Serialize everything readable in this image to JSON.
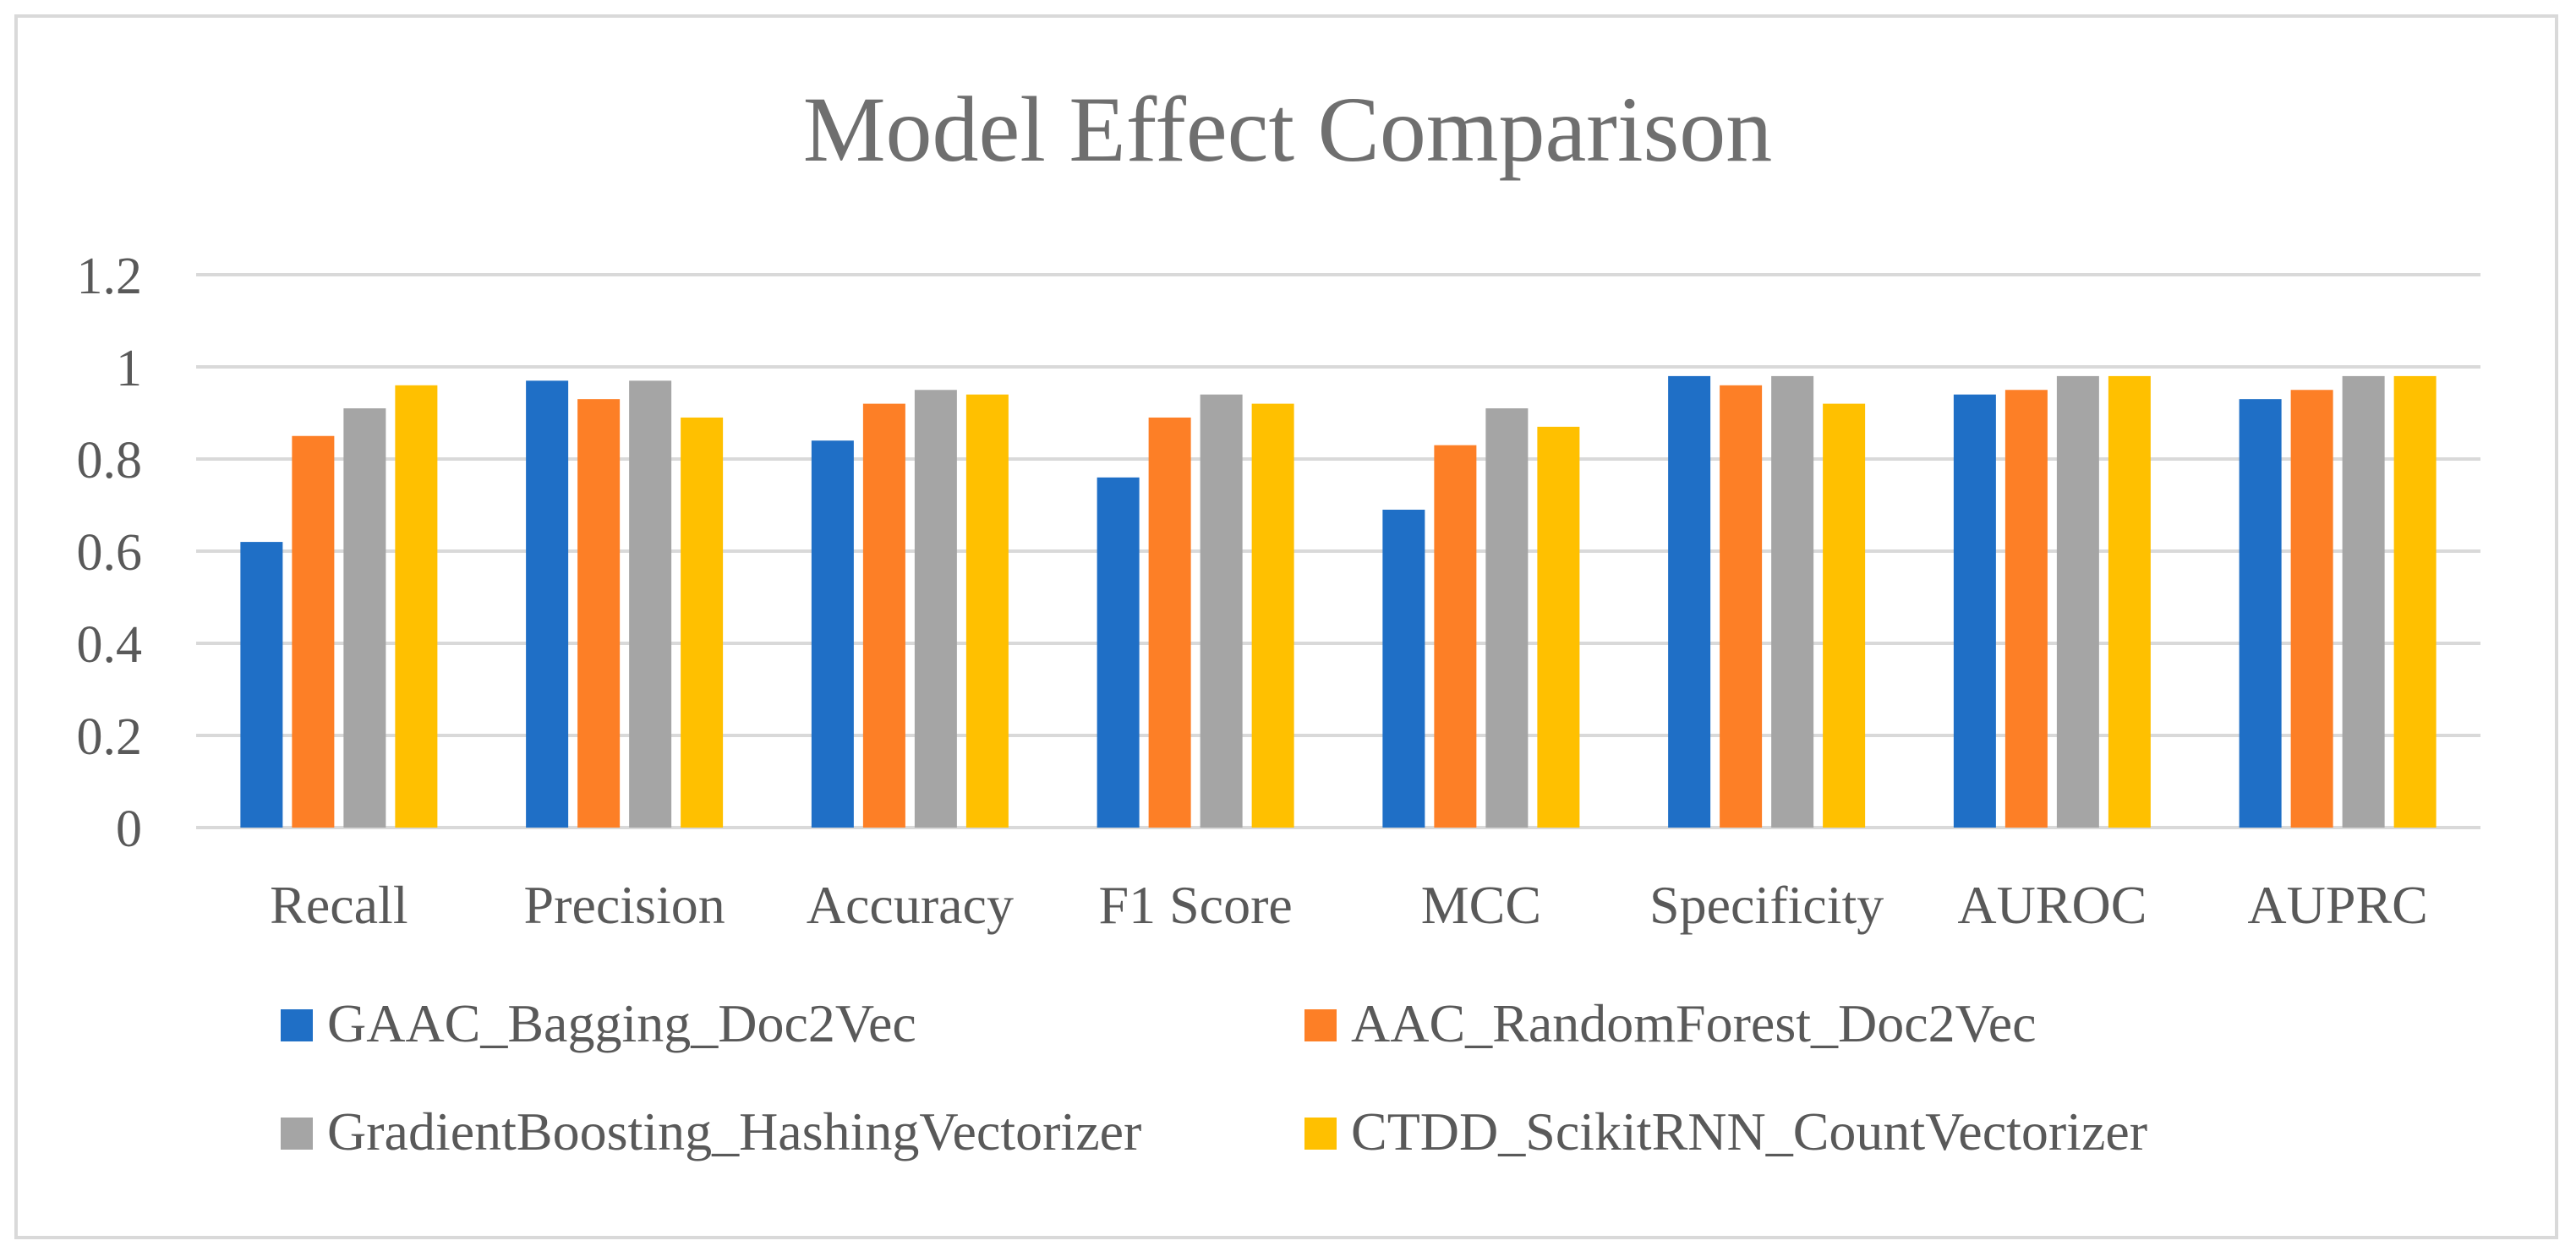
{
  "chart_data": {
    "type": "bar",
    "title": "Model Effect Comparison",
    "xlabel": "",
    "ylabel": "",
    "categories": [
      "Recall",
      "Precision",
      "Accuracy",
      "F1 Score",
      "MCC",
      "Specificity",
      "AUROC",
      "AUPRC"
    ],
    "yticks": [
      "0",
      "0.2",
      "0.4",
      "0.6",
      "0.8",
      "1",
      "1.2"
    ],
    "ylim": [
      0,
      1.2
    ],
    "grid": true,
    "legend_position": "bottom",
    "series": [
      {
        "name": "GAAC_Bagging_Doc2Vec",
        "color": "#1f6fc6",
        "values": [
          0.62,
          0.97,
          0.84,
          0.76,
          0.69,
          0.98,
          0.94,
          0.93
        ]
      },
      {
        "name": "AAC_RandomForest_Doc2Vec",
        "color": "#fd7f26",
        "values": [
          0.85,
          0.93,
          0.92,
          0.89,
          0.83,
          0.96,
          0.95,
          0.95
        ]
      },
      {
        "name": "GradientBoosting_HashingVectorizer",
        "color": "#a5a5a5",
        "values": [
          0.91,
          0.97,
          0.95,
          0.94,
          0.91,
          0.98,
          0.98,
          0.98
        ]
      },
      {
        "name": "CTDD_ScikitRNN_CountVectorizer",
        "color": "#ffc000",
        "values": [
          0.96,
          0.89,
          0.94,
          0.92,
          0.87,
          0.92,
          0.98,
          0.98
        ]
      }
    ]
  }
}
